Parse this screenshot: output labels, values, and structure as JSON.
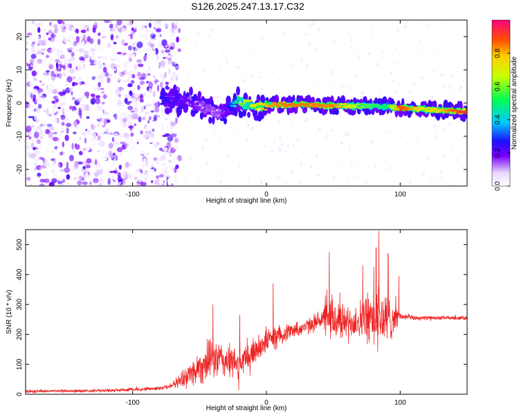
{
  "title": "S126.2025.247.13.17.C32",
  "colors": {
    "axes": "#000000",
    "snr_line": "#ee2222",
    "background": "#ffffff"
  },
  "chart_data": [
    {
      "type": "heatmap",
      "name": "spectrogram",
      "xlabel": "Height of straight line (km)",
      "ylabel": "Frequency (Hz)",
      "xlim": [
        -180,
        150
      ],
      "ylim": [
        -25,
        25
      ],
      "xticks": [
        -100,
        0,
        100
      ],
      "yticks": [
        -20,
        -10,
        0,
        10,
        20
      ],
      "colorbar": {
        "label": "Normalized spectral amplitude",
        "range": [
          0,
          1
        ],
        "ticks": [
          "0.0",
          "0.2",
          "0.4",
          "0.6",
          "0.8"
        ],
        "tick_values": [
          0.0,
          0.2,
          0.4,
          0.6,
          0.8
        ]
      },
      "ridge": {
        "description": "dominant frequency track vs height",
        "x": [
          -75,
          -60,
          -45,
          -35,
          -30,
          -22,
          -18,
          -10,
          0,
          10,
          30,
          50,
          70,
          90,
          100,
          120,
          150
        ],
        "y": [
          0.5,
          0.5,
          -1.5,
          -3.5,
          -2.5,
          1,
          0,
          -0.8,
          -0.8,
          -0.5,
          -0.5,
          -0.8,
          -0.9,
          -1,
          -1.5,
          -2,
          -2.5
        ],
        "peak_amplitude": [
          0.25,
          0.2,
          0.15,
          0.15,
          0.2,
          0.5,
          0.6,
          0.7,
          0.8,
          0.85,
          0.85,
          0.85,
          0.6,
          0.5,
          0.9,
          0.7,
          0.95
        ]
      },
      "noise_region_x": [
        -180,
        -75
      ]
    },
    {
      "type": "line",
      "name": "snr",
      "xlabel": "Height of straight line (km)",
      "ylabel": "SNR (10 * v/v)",
      "xlim": [
        -180,
        150
      ],
      "ylim": [
        0,
        550
      ],
      "xticks": [
        -100,
        0,
        100
      ],
      "yticks": [
        0,
        100,
        200,
        300,
        400,
        500
      ],
      "envelope": {
        "x": [
          -180,
          -120,
          -80,
          -70,
          -60,
          -50,
          -40,
          -30,
          -20,
          -10,
          0,
          10,
          20,
          30,
          40,
          50,
          60,
          70,
          80,
          90,
          100,
          110,
          120,
          150
        ],
        "mean": [
          10,
          12,
          20,
          30,
          60,
          90,
          120,
          110,
          100,
          140,
          180,
          200,
          215,
          225,
          250,
          250,
          240,
          250,
          255,
          250,
          260,
          255,
          255,
          255
        ],
        "spread": [
          5,
          6,
          8,
          12,
          40,
          70,
          80,
          70,
          60,
          60,
          50,
          40,
          30,
          30,
          40,
          100,
          60,
          80,
          120,
          120,
          15,
          10,
          8,
          8
        ]
      },
      "spikes": [
        {
          "x": -40,
          "y": 300
        },
        {
          "x": -20,
          "y": 265
        },
        {
          "x": 5,
          "y": 370
        },
        {
          "x": 47,
          "y": 475
        },
        {
          "x": 72,
          "y": 430
        },
        {
          "x": 82,
          "y": 490
        },
        {
          "x": 84,
          "y": 545
        },
        {
          "x": 91,
          "y": 470
        },
        {
          "x": 99,
          "y": 395
        }
      ]
    }
  ]
}
